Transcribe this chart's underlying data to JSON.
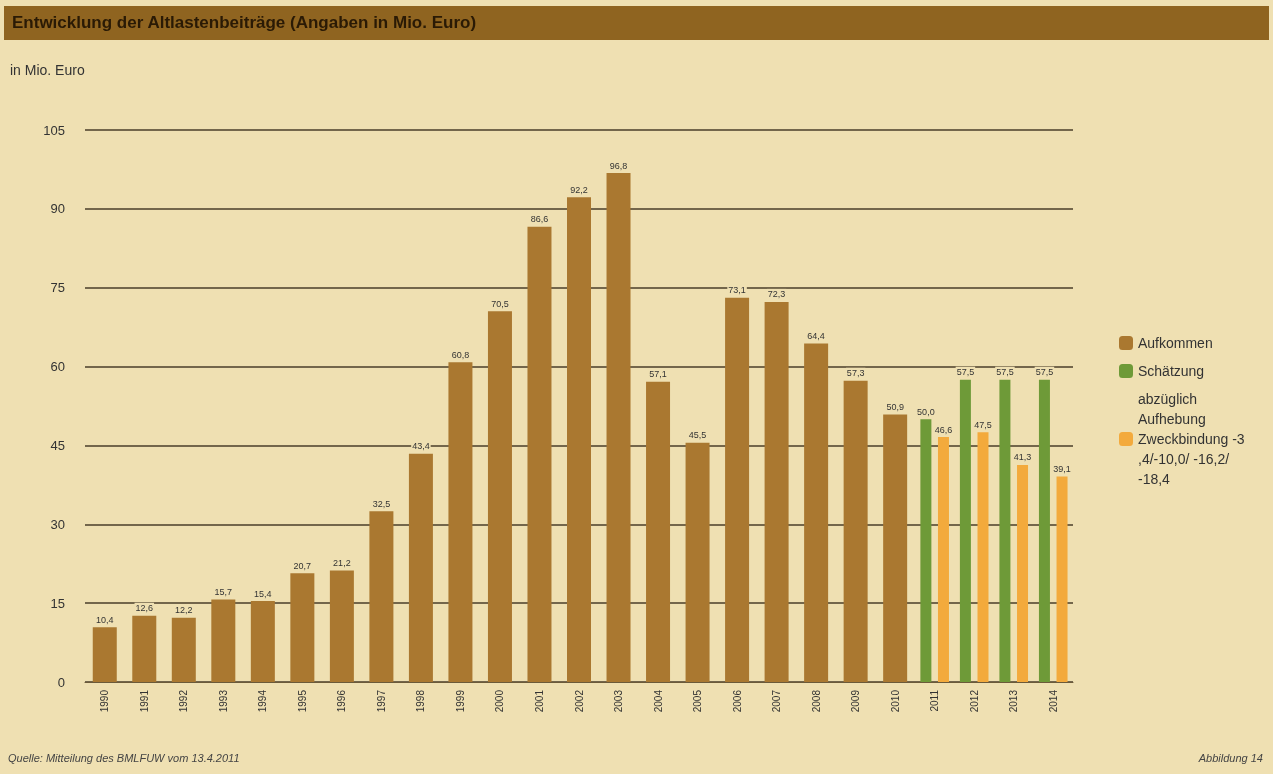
{
  "chart_data": {
    "type": "bar",
    "title": "Entwicklung der Altlastenbeiträge (Angaben in Mio. Euro)",
    "ylabel": "in Mio. Euro",
    "categories": [
      "1990",
      "1991",
      "1992",
      "1993",
      "1994",
      "1995",
      "1996",
      "1997",
      "1998",
      "1999",
      "2000",
      "2001",
      "2002",
      "2003",
      "2004",
      "2005",
      "2006",
      "2007",
      "2008",
      "2009",
      "2010",
      "2011",
      "2012",
      "2013",
      "2014"
    ],
    "series": [
      {
        "name": "Aufkommen",
        "color": "#aa7830",
        "values": [
          10.4,
          12.6,
          12.2,
          15.7,
          15.4,
          20.7,
          21.2,
          32.5,
          43.4,
          60.8,
          70.5,
          86.6,
          92.2,
          96.8,
          57.1,
          45.5,
          73.1,
          72.3,
          64.4,
          57.3,
          50.9,
          null,
          null,
          null,
          null
        ],
        "value_labels": [
          "10,4",
          "12,6",
          "12,2",
          "15,7",
          "15,4",
          "20,7",
          "21,2",
          "32,5",
          "43,4",
          "60,8",
          "70,5",
          "86,6",
          "92,2",
          "96,8",
          "57,1",
          "45,5",
          "73,1",
          "72,3",
          "64,4",
          "57,3",
          "50,9",
          null,
          null,
          null,
          null
        ]
      },
      {
        "name": "Schätzung",
        "color": "#6e9a38",
        "values": [
          null,
          null,
          null,
          null,
          null,
          null,
          null,
          null,
          null,
          null,
          null,
          null,
          null,
          null,
          null,
          null,
          null,
          null,
          null,
          null,
          null,
          50.0,
          57.5,
          57.5,
          57.5
        ],
        "value_labels": [
          null,
          null,
          null,
          null,
          null,
          null,
          null,
          null,
          null,
          null,
          null,
          null,
          null,
          null,
          null,
          null,
          null,
          null,
          null,
          null,
          null,
          "50,0",
          "57,5",
          "57,5",
          "57,5"
        ]
      },
      {
        "name": "abzüglich Aufhebung Zweckbindung -3,4/-10,0/ -16,2/-18,4",
        "color": "#f3aa3c",
        "values": [
          null,
          null,
          null,
          null,
          null,
          null,
          null,
          null,
          null,
          null,
          null,
          null,
          null,
          null,
          null,
          null,
          null,
          null,
          null,
          null,
          null,
          46.6,
          47.5,
          41.3,
          39.1
        ],
        "value_labels": [
          null,
          null,
          null,
          null,
          null,
          null,
          null,
          null,
          null,
          null,
          null,
          null,
          null,
          null,
          null,
          null,
          null,
          null,
          null,
          null,
          null,
          "46,6",
          "47,5",
          "41,3",
          "39,1"
        ]
      }
    ],
    "ylim": [
      0,
      105
    ],
    "yticks": [
      0,
      15,
      30,
      45,
      60,
      75,
      90,
      105
    ],
    "grid": "y",
    "legend": "right",
    "annotations": [
      "Quelle: Mitteilung des BMLFUW vom 13.4.2011",
      "Abbildung 14"
    ]
  }
}
